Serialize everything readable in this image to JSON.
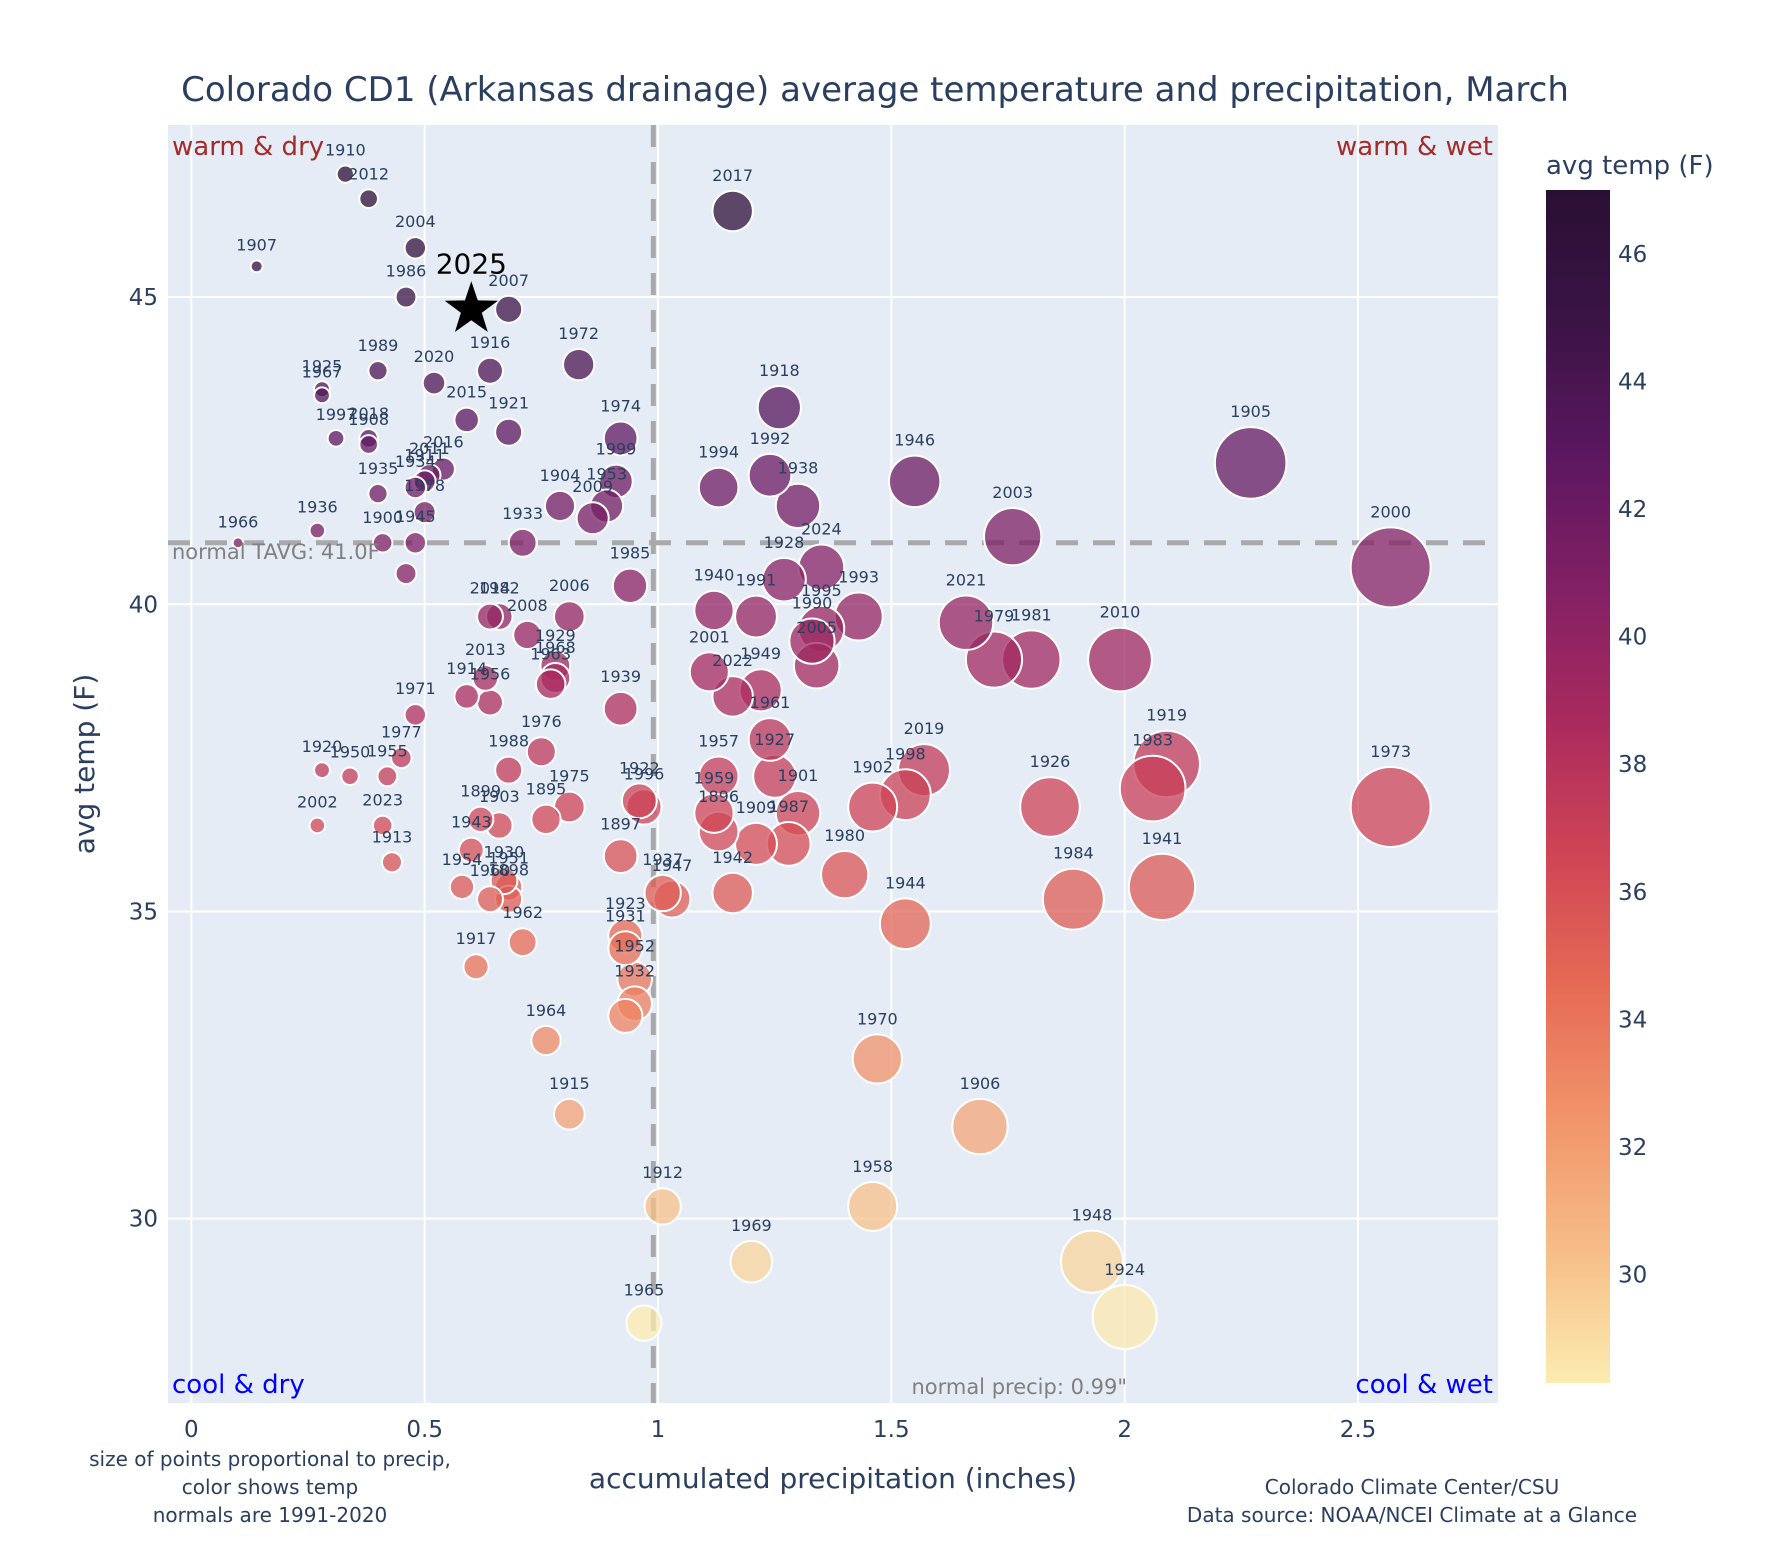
{
  "chart_data": {
    "type": "scatter",
    "title": "Colorado CD1 (Arkansas drainage) average temperature and precipitation, March",
    "xlabel": "accumulated precipitation (inches)",
    "ylabel": "avg temp (F)",
    "xlim": [
      -0.05,
      2.8
    ],
    "ylim": [
      27.0,
      47.8
    ],
    "xticks": [
      0,
      0.5,
      1,
      1.5,
      2,
      2.5
    ],
    "xtick_labels": [
      "0",
      "0.5",
      "1",
      "1.5",
      "2",
      "2.5"
    ],
    "yticks": [
      30,
      35,
      40,
      45
    ],
    "ytick_labels": [
      "30",
      "35",
      "40",
      "45"
    ],
    "grid": true,
    "normal_temp": 41.0,
    "normal_temp_label": "normal TAVG: 41.0F",
    "normal_precip": 0.99,
    "normal_precip_label": "normal precip: 0.99\"",
    "quadrant_labels": {
      "top_left": "warm & dry",
      "top_right": "warm & wet",
      "bottom_left": "cool & dry",
      "bottom_right": "cool & wet"
    },
    "colorbar": {
      "title": "avg temp (F)",
      "range": [
        28.3,
        47.0
      ],
      "ticks": [
        30,
        32,
        34,
        36,
        38,
        40,
        42,
        44,
        46
      ],
      "colorscale": [
        "#fcecb0",
        "#f6bd88",
        "#f1946a",
        "#e66a55",
        "#cf4455",
        "#a92a5e",
        "#822064",
        "#5b1760",
        "#3a1445",
        "#2a0f33"
      ]
    },
    "highlight": {
      "year": "2025",
      "precip": 0.6,
      "temp": 44.8,
      "marker": "star"
    },
    "points": [
      {
        "year": "1910",
        "precip": 0.33,
        "temp": 47.0
      },
      {
        "year": "2012",
        "precip": 0.38,
        "temp": 46.6
      },
      {
        "year": "2004",
        "precip": 0.48,
        "temp": 45.8
      },
      {
        "year": "1907",
        "precip": 0.14,
        "temp": 45.5
      },
      {
        "year": "1986",
        "precip": 0.46,
        "temp": 45.0
      },
      {
        "year": "2007",
        "precip": 0.68,
        "temp": 44.8
      },
      {
        "year": "1916",
        "precip": 0.64,
        "temp": 43.8
      },
      {
        "year": "1972",
        "precip": 0.83,
        "temp": 43.9
      },
      {
        "year": "1989",
        "precip": 0.4,
        "temp": 43.8
      },
      {
        "year": "2020",
        "precip": 0.52,
        "temp": 43.6
      },
      {
        "year": "1925",
        "precip": 0.28,
        "temp": 43.5
      },
      {
        "year": "1967",
        "precip": 0.28,
        "temp": 43.4
      },
      {
        "year": "2015",
        "precip": 0.59,
        "temp": 43.0
      },
      {
        "year": "1921",
        "precip": 0.68,
        "temp": 42.8
      },
      {
        "year": "1997",
        "precip": 0.31,
        "temp": 42.7
      },
      {
        "year": "2018",
        "precip": 0.38,
        "temp": 42.7
      },
      {
        "year": "1908",
        "precip": 0.38,
        "temp": 42.6
      },
      {
        "year": "2016",
        "precip": 0.54,
        "temp": 42.2
      },
      {
        "year": "2011",
        "precip": 0.51,
        "temp": 42.1
      },
      {
        "year": "1911",
        "precip": 0.5,
        "temp": 42.0
      },
      {
        "year": "1934",
        "precip": 0.48,
        "temp": 41.9
      },
      {
        "year": "1935",
        "precip": 0.4,
        "temp": 41.8
      },
      {
        "year": "1936",
        "precip": 0.27,
        "temp": 41.2
      },
      {
        "year": "1978",
        "precip": 0.5,
        "temp": 41.5
      },
      {
        "year": "1900",
        "precip": 0.41,
        "temp": 41.0
      },
      {
        "year": "1945",
        "precip": 0.48,
        "temp": 41.0
      },
      {
        "year": "1966",
        "precip": 0.1,
        "temp": 41.0
      },
      {
        "year": "",
        "precip": 0.46,
        "temp": 40.5
      },
      {
        "year": "1933",
        "precip": 0.71,
        "temp": 41.0
      },
      {
        "year": "1904",
        "precip": 0.79,
        "temp": 41.6
      },
      {
        "year": "1974",
        "precip": 0.92,
        "temp": 42.7
      },
      {
        "year": "1999",
        "precip": 0.91,
        "temp": 42.0
      },
      {
        "year": "1953",
        "precip": 0.89,
        "temp": 41.6
      },
      {
        "year": "2009",
        "precip": 0.86,
        "temp": 41.4
      },
      {
        "year": "1985",
        "precip": 0.94,
        "temp": 40.3
      },
      {
        "year": "2017",
        "precip": 1.16,
        "temp": 46.4
      },
      {
        "year": "1918",
        "precip": 1.26,
        "temp": 43.2
      },
      {
        "year": "1994",
        "precip": 1.13,
        "temp": 41.9
      },
      {
        "year": "1992",
        "precip": 1.24,
        "temp": 42.1
      },
      {
        "year": "1938",
        "precip": 1.3,
        "temp": 41.6
      },
      {
        "year": "1946",
        "precip": 1.55,
        "temp": 42.0
      },
      {
        "year": "1905",
        "precip": 2.27,
        "temp": 42.3
      },
      {
        "year": "2003",
        "precip": 1.76,
        "temp": 41.1
      },
      {
        "year": "2000",
        "precip": 2.57,
        "temp": 40.6
      },
      {
        "year": "2024",
        "precip": 1.35,
        "temp": 40.6
      },
      {
        "year": "1928",
        "precip": 1.27,
        "temp": 40.4
      },
      {
        "year": "1940",
        "precip": 1.12,
        "temp": 39.9
      },
      {
        "year": "1991",
        "precip": 1.21,
        "temp": 39.8
      },
      {
        "year": "1993",
        "precip": 1.43,
        "temp": 39.8
      },
      {
        "year": "1995",
        "precip": 1.35,
        "temp": 39.6
      },
      {
        "year": "1990",
        "precip": 1.33,
        "temp": 39.4
      },
      {
        "year": "2005",
        "precip": 1.34,
        "temp": 39.0
      },
      {
        "year": "2021",
        "precip": 1.66,
        "temp": 39.7
      },
      {
        "year": "1979",
        "precip": 1.72,
        "temp": 39.1
      },
      {
        "year": "1981",
        "precip": 1.8,
        "temp": 39.1
      },
      {
        "year": "2010",
        "precip": 1.99,
        "temp": 39.1
      },
      {
        "year": "2001",
        "precip": 1.11,
        "temp": 38.9
      },
      {
        "year": "2022",
        "precip": 1.16,
        "temp": 38.5
      },
      {
        "year": "1949",
        "precip": 1.22,
        "temp": 38.6
      },
      {
        "year": "1961",
        "precip": 1.24,
        "temp": 37.8
      },
      {
        "year": "1957",
        "precip": 1.13,
        "temp": 37.2
      },
      {
        "year": "1927",
        "precip": 1.25,
        "temp": 37.2
      },
      {
        "year": "1959",
        "precip": 1.12,
        "temp": 36.6
      },
      {
        "year": "1901",
        "precip": 1.3,
        "temp": 36.6
      },
      {
        "year": "1896",
        "precip": 1.13,
        "temp": 36.3
      },
      {
        "year": "1909",
        "precip": 1.21,
        "temp": 36.1
      },
      {
        "year": "1987",
        "precip": 1.28,
        "temp": 36.1
      },
      {
        "year": "1942",
        "precip": 1.16,
        "temp": 35.3
      },
      {
        "year": "1902",
        "precip": 1.46,
        "temp": 36.7
      },
      {
        "year": "1998",
        "precip": 1.53,
        "temp": 36.9
      },
      {
        "year": "2019",
        "precip": 1.57,
        "temp": 37.3
      },
      {
        "year": "1926",
        "precip": 1.84,
        "temp": 36.7
      },
      {
        "year": "1919",
        "precip": 2.09,
        "temp": 37.4
      },
      {
        "year": "1983",
        "precip": 2.06,
        "temp": 37.0
      },
      {
        "year": "1973",
        "precip": 2.57,
        "temp": 36.7
      },
      {
        "year": "1980",
        "precip": 1.4,
        "temp": 35.6
      },
      {
        "year": "1944",
        "precip": 1.53,
        "temp": 34.8
      },
      {
        "year": "1984",
        "precip": 1.89,
        "temp": 35.2
      },
      {
        "year": "1941",
        "precip": 2.08,
        "temp": 35.4
      },
      {
        "year": "1970",
        "precip": 1.47,
        "temp": 32.6
      },
      {
        "year": "1906",
        "precip": 1.69,
        "temp": 31.5
      },
      {
        "year": "1958",
        "precip": 1.46,
        "temp": 30.2
      },
      {
        "year": "1948",
        "precip": 1.93,
        "temp": 29.3
      },
      {
        "year": "1924",
        "precip": 2.0,
        "temp": 28.4
      },
      {
        "year": "1969",
        "precip": 1.2,
        "temp": 29.3
      },
      {
        "year": "1912",
        "precip": 1.01,
        "temp": 30.2
      },
      {
        "year": "1965",
        "precip": 0.97,
        "temp": 28.3
      },
      {
        "year": "1937",
        "precip": 1.01,
        "temp": 35.3
      },
      {
        "year": "1947",
        "precip": 1.03,
        "temp": 35.2
      },
      {
        "year": "1923",
        "precip": 0.93,
        "temp": 34.6
      },
      {
        "year": "1931",
        "precip": 0.93,
        "temp": 34.4
      },
      {
        "year": "1952",
        "precip": 0.95,
        "temp": 33.9
      },
      {
        "year": "1932",
        "precip": 0.95,
        "temp": 33.5
      },
      {
        "year": "",
        "precip": 0.93,
        "temp": 33.3
      },
      {
        "year": "1964",
        "precip": 0.76,
        "temp": 32.9
      },
      {
        "year": "1915",
        "precip": 0.81,
        "temp": 31.7
      },
      {
        "year": "1922",
        "precip": 0.96,
        "temp": 36.8
      },
      {
        "year": "1996",
        "precip": 0.97,
        "temp": 36.7
      },
      {
        "year": "1897",
        "precip": 0.92,
        "temp": 35.9
      },
      {
        "year": "1939",
        "precip": 0.92,
        "temp": 38.3
      },
      {
        "year": "2006",
        "precip": 0.81,
        "temp": 39.8
      },
      {
        "year": "2014",
        "precip": 0.64,
        "temp": 39.8
      },
      {
        "year": "1982",
        "precip": 0.66,
        "temp": 39.8
      },
      {
        "year": "2008",
        "precip": 0.72,
        "temp": 39.5
      },
      {
        "year": "1929",
        "precip": 0.78,
        "temp": 39.0
      },
      {
        "year": "1968",
        "precip": 0.78,
        "temp": 38.8
      },
      {
        "year": "1963",
        "precip": 0.77,
        "temp": 38.7
      },
      {
        "year": "2013",
        "precip": 0.63,
        "temp": 38.8
      },
      {
        "year": "1914",
        "precip": 0.59,
        "temp": 38.5
      },
      {
        "year": "1956",
        "precip": 0.64,
        "temp": 38.4
      },
      {
        "year": "1971",
        "precip": 0.48,
        "temp": 38.2
      },
      {
        "year": "1976",
        "precip": 0.75,
        "temp": 37.6
      },
      {
        "year": "1988",
        "precip": 0.68,
        "temp": 37.3
      },
      {
        "year": "1975",
        "precip": 0.81,
        "temp": 36.7
      },
      {
        "year": "1895",
        "precip": 0.76,
        "temp": 36.5
      },
      {
        "year": "1899",
        "precip": 0.62,
        "temp": 36.5
      },
      {
        "year": "1903",
        "precip": 0.66,
        "temp": 36.4
      },
      {
        "year": "1977",
        "precip": 0.45,
        "temp": 37.5
      },
      {
        "year": "1955",
        "precip": 0.42,
        "temp": 37.2
      },
      {
        "year": "1950",
        "precip": 0.34,
        "temp": 37.2
      },
      {
        "year": "1920",
        "precip": 0.28,
        "temp": 37.3
      },
      {
        "year": "2023",
        "precip": 0.41,
        "temp": 36.4
      },
      {
        "year": "2002",
        "precip": 0.27,
        "temp": 36.4
      },
      {
        "year": "1913",
        "precip": 0.43,
        "temp": 35.8
      },
      {
        "year": "1943",
        "precip": 0.6,
        "temp": 36.0
      },
      {
        "year": "1954",
        "precip": 0.58,
        "temp": 35.4
      },
      {
        "year": "1930",
        "precip": 0.67,
        "temp": 35.5
      },
      {
        "year": "1951",
        "precip": 0.68,
        "temp": 35.4
      },
      {
        "year": "1960",
        "precip": 0.64,
        "temp": 35.2
      },
      {
        "year": "1898",
        "precip": 0.68,
        "temp": 35.2
      },
      {
        "year": "1962",
        "precip": 0.71,
        "temp": 34.5
      },
      {
        "year": "1917",
        "precip": 0.61,
        "temp": 34.1
      }
    ]
  },
  "notes": {
    "left_line1": "size of points proportional to precip,",
    "left_line2": "color shows temp",
    "left_line3": "normals are 1991-2020",
    "credit_line1": "Colorado Climate Center/CSU",
    "credit_line2": "Data source: NOAA/NCEI Climate at a Glance"
  }
}
